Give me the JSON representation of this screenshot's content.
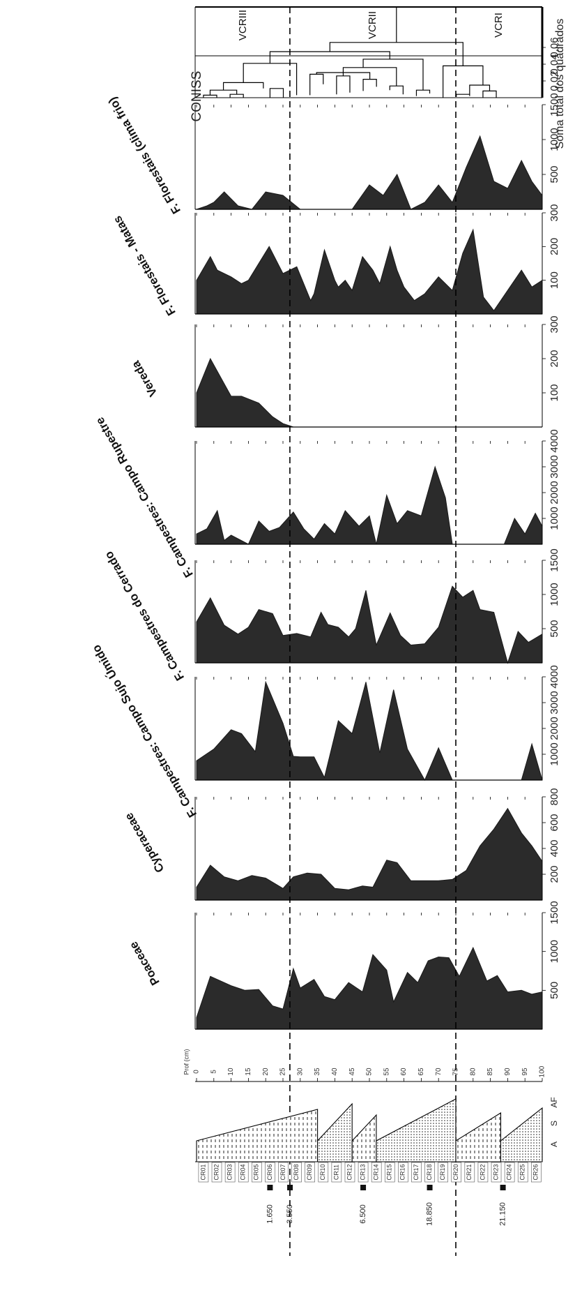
{
  "chart_data": {
    "type": "area",
    "orientation": "rotated",
    "depth_axis": {
      "label": "Prof (cm)",
      "ticks": [
        0,
        5,
        10,
        15,
        20,
        25,
        30,
        35,
        40,
        45,
        50,
        55,
        60,
        65,
        70,
        75,
        80,
        85,
        90,
        95,
        100
      ],
      "range": [
        0,
        100
      ]
    },
    "zone_boundaries_depth": [
      27,
      75
    ],
    "panels": [
      {
        "title": "Poaceae",
        "xticks": [
          500,
          1000,
          1500
        ],
        "xmax": 1500,
        "depth": [
          0,
          4,
          10,
          14,
          18,
          22,
          25,
          28,
          30,
          34,
          37,
          40,
          44,
          48,
          51,
          55,
          57,
          61,
          64,
          67,
          70,
          73,
          76,
          80,
          84,
          87,
          90,
          94,
          97,
          100
        ],
        "values": [
          150,
          680,
          560,
          500,
          510,
          300,
          260,
          780,
          530,
          640,
          420,
          380,
          600,
          480,
          960,
          760,
          350,
          730,
          600,
          880,
          930,
          920,
          680,
          1050,
          620,
          690,
          480,
          500,
          450,
          480
        ]
      },
      {
        "title": "Cyperaceae",
        "xticks": [
          200,
          400,
          600,
          800
        ],
        "xmax": 800,
        "depth": [
          0,
          4,
          8,
          12,
          16,
          20,
          25,
          28,
          32,
          36,
          40,
          44,
          48,
          51,
          55,
          58,
          62,
          66,
          70,
          74,
          78,
          82,
          86,
          90,
          94,
          97,
          100
        ],
        "values": [
          100,
          270,
          180,
          150,
          190,
          170,
          90,
          180,
          210,
          200,
          90,
          80,
          110,
          100,
          310,
          290,
          150,
          150,
          150,
          160,
          230,
          420,
          550,
          710,
          520,
          420,
          300
        ]
      },
      {
        "title": "F. Campestres: Campo Sujo Úmido",
        "xticks": [
          1000,
          2000,
          3000,
          4000
        ],
        "xmax": 4000,
        "depth": [
          0,
          5,
          10,
          13,
          17,
          20,
          25,
          28,
          30,
          34,
          37,
          41,
          45,
          49,
          53,
          57,
          61,
          66,
          70,
          74,
          78,
          82,
          86,
          90,
          94,
          97,
          100
        ],
        "values": [
          750,
          1200,
          1950,
          1800,
          1100,
          3800,
          2200,
          920,
          900,
          900,
          100,
          2300,
          1800,
          3800,
          1050,
          3500,
          1200,
          0,
          1250,
          0,
          0,
          0,
          0,
          0,
          0,
          1400,
          0
        ]
      },
      {
        "title": "F. Campestres do Cerrado",
        "xticks": [
          500,
          1000,
          1500
        ],
        "xmax": 1500,
        "depth": [
          0,
          4,
          8,
          12,
          15,
          18,
          22,
          25,
          29,
          33,
          36,
          38,
          41,
          44,
          46,
          49,
          52,
          56,
          59,
          62,
          66,
          70,
          74,
          77,
          80,
          82,
          86,
          90,
          93,
          96,
          100
        ],
        "values": [
          600,
          950,
          550,
          420,
          520,
          780,
          720,
          400,
          430,
          380,
          740,
          560,
          520,
          380,
          500,
          1060,
          260,
          730,
          400,
          260,
          280,
          520,
          1120,
          960,
          1060,
          780,
          740,
          0,
          460,
          300,
          420
        ]
      },
      {
        "title": "F. Campestres: Campo Rupestre",
        "xticks": [
          1000,
          2000,
          3000,
          4000
        ],
        "xmax": 4000,
        "depth": [
          0,
          3,
          6,
          8,
          10,
          15,
          18,
          21,
          24,
          28,
          31,
          34,
          37,
          40,
          43,
          47,
          50,
          52,
          55,
          58,
          61,
          65,
          69,
          72,
          74,
          78,
          82,
          86,
          89,
          92,
          95,
          98,
          100
        ],
        "values": [
          400,
          600,
          1300,
          150,
          350,
          0,
          900,
          500,
          650,
          1250,
          600,
          200,
          800,
          400,
          1300,
          700,
          1100,
          0,
          1900,
          800,
          1300,
          1100,
          3000,
          1800,
          0,
          0,
          0,
          0,
          0,
          1000,
          400,
          1200,
          700
        ]
      },
      {
        "title": "Vereda",
        "xticks": [
          100,
          200,
          300
        ],
        "xmax": 300,
        "depth": [
          0,
          4,
          10,
          13,
          18,
          22,
          25,
          28,
          30
        ],
        "values": [
          100,
          200,
          90,
          90,
          70,
          30,
          10,
          0,
          0
        ]
      },
      {
        "title": "F. Florestais - Matas",
        "xticks": [
          100,
          200,
          300
        ],
        "xmax": 300,
        "depth": [
          0,
          4,
          6,
          10,
          13,
          15,
          21,
          25,
          29,
          33,
          34,
          37,
          40,
          41,
          43,
          45,
          48,
          51,
          53,
          56,
          58,
          60,
          63,
          66,
          70,
          74,
          77,
          80,
          83,
          86,
          90,
          94,
          97,
          100
        ],
        "values": [
          100,
          170,
          130,
          110,
          90,
          100,
          200,
          120,
          140,
          40,
          60,
          190,
          100,
          80,
          100,
          70,
          170,
          130,
          90,
          200,
          130,
          80,
          40,
          60,
          110,
          70,
          180,
          250,
          50,
          10,
          70,
          130,
          80,
          100
        ]
      },
      {
        "title": "F. Florestais (clima frio)",
        "xticks": [
          500,
          1000,
          1500
        ],
        "xmax": 1500,
        "depth": [
          0,
          3,
          5,
          8,
          12,
          16,
          20,
          25,
          30,
          34,
          45,
          50,
          54,
          58,
          62,
          66,
          70,
          74,
          78,
          82,
          86,
          90,
          94,
          97,
          100
        ],
        "values": [
          0,
          50,
          100,
          250,
          50,
          0,
          250,
          200,
          0,
          0,
          0,
          350,
          200,
          500,
          0,
          100,
          350,
          100,
          600,
          1050,
          400,
          300,
          700,
          400,
          200
        ]
      }
    ],
    "coniss": {
      "title": "CONISS",
      "xlabel": "Soma total dos quadrados",
      "xticks": [
        0.02,
        0.04,
        0.06
      ],
      "tick_labels": [
        "0,02",
        "0,04",
        "0,06"
      ]
    },
    "zones": [
      "VCRIII",
      "VCRII",
      "VCRI"
    ],
    "lithology": {
      "columns": [
        "A",
        "S",
        "AF"
      ],
      "sample_labels": [
        "CR01",
        "CR02",
        "CR03",
        "CR04",
        "CR05",
        "CR06",
        "CR07",
        "CR08",
        "CR09",
        "CR10",
        "CR11",
        "CR12",
        "CR13",
        "CR14",
        "CR15",
        "CR16",
        "CR17",
        "CR18",
        "CR19",
        "CR20",
        "CR21",
        "CR22",
        "CR23",
        "CR24",
        "CR25",
        "CR26"
      ],
      "dates": [
        "1.650",
        "3.550",
        "6.500",
        "18.850",
        "21.150"
      ]
    }
  }
}
